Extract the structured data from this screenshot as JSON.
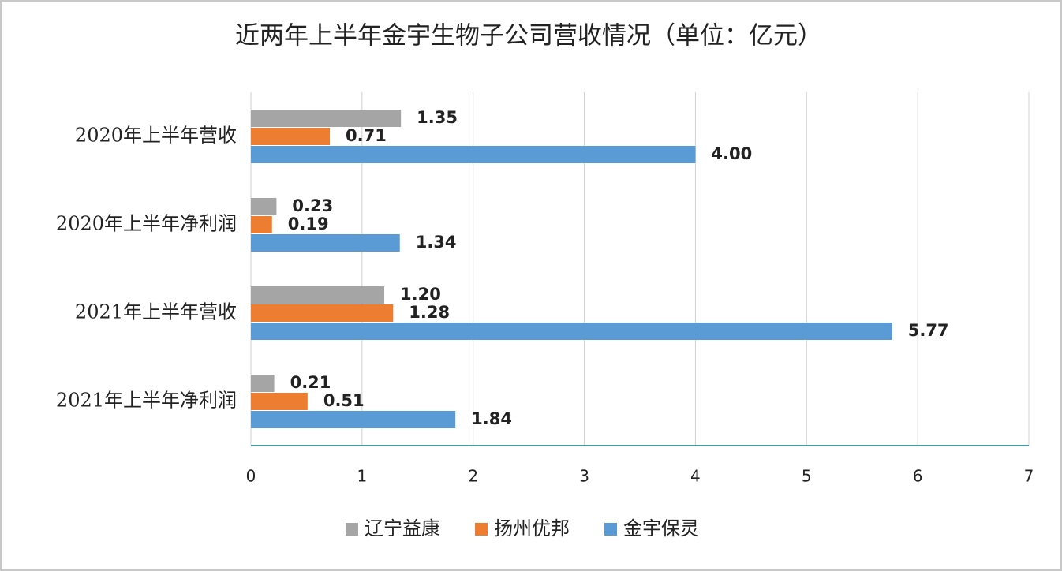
{
  "chart_data": {
    "type": "hbar",
    "title": "近两年上半年金宇生物子公司营收情况（单位：亿元）",
    "categories": [
      "2020年上半年营收",
      "2020年上半年净利润",
      "2021年上半年营收",
      "2021年上半年净利润"
    ],
    "series": [
      {
        "name": "辽宁益康",
        "color": "#a5a5a5",
        "values": [
          1.35,
          0.23,
          1.2,
          0.21
        ],
        "value_labels": [
          "1.35",
          "0.23",
          "1.20",
          "0.21"
        ]
      },
      {
        "name": "扬州优邦",
        "color": "#ed7d31",
        "values": [
          0.71,
          0.19,
          1.28,
          0.51
        ],
        "value_labels": [
          "0.71",
          "0.19",
          "1.28",
          "0.51"
        ]
      },
      {
        "name": "金宇保灵",
        "color": "#5b9bd5",
        "values": [
          4,
          1.34,
          5.77,
          1.84
        ],
        "value_labels": [
          "4.00",
          "1.34",
          "5.77",
          "1.84"
        ]
      }
    ],
    "xlim": [
      0,
      7
    ],
    "xticks": [
      0,
      1,
      2,
      3,
      4,
      5,
      6,
      7
    ],
    "grid": true
  }
}
